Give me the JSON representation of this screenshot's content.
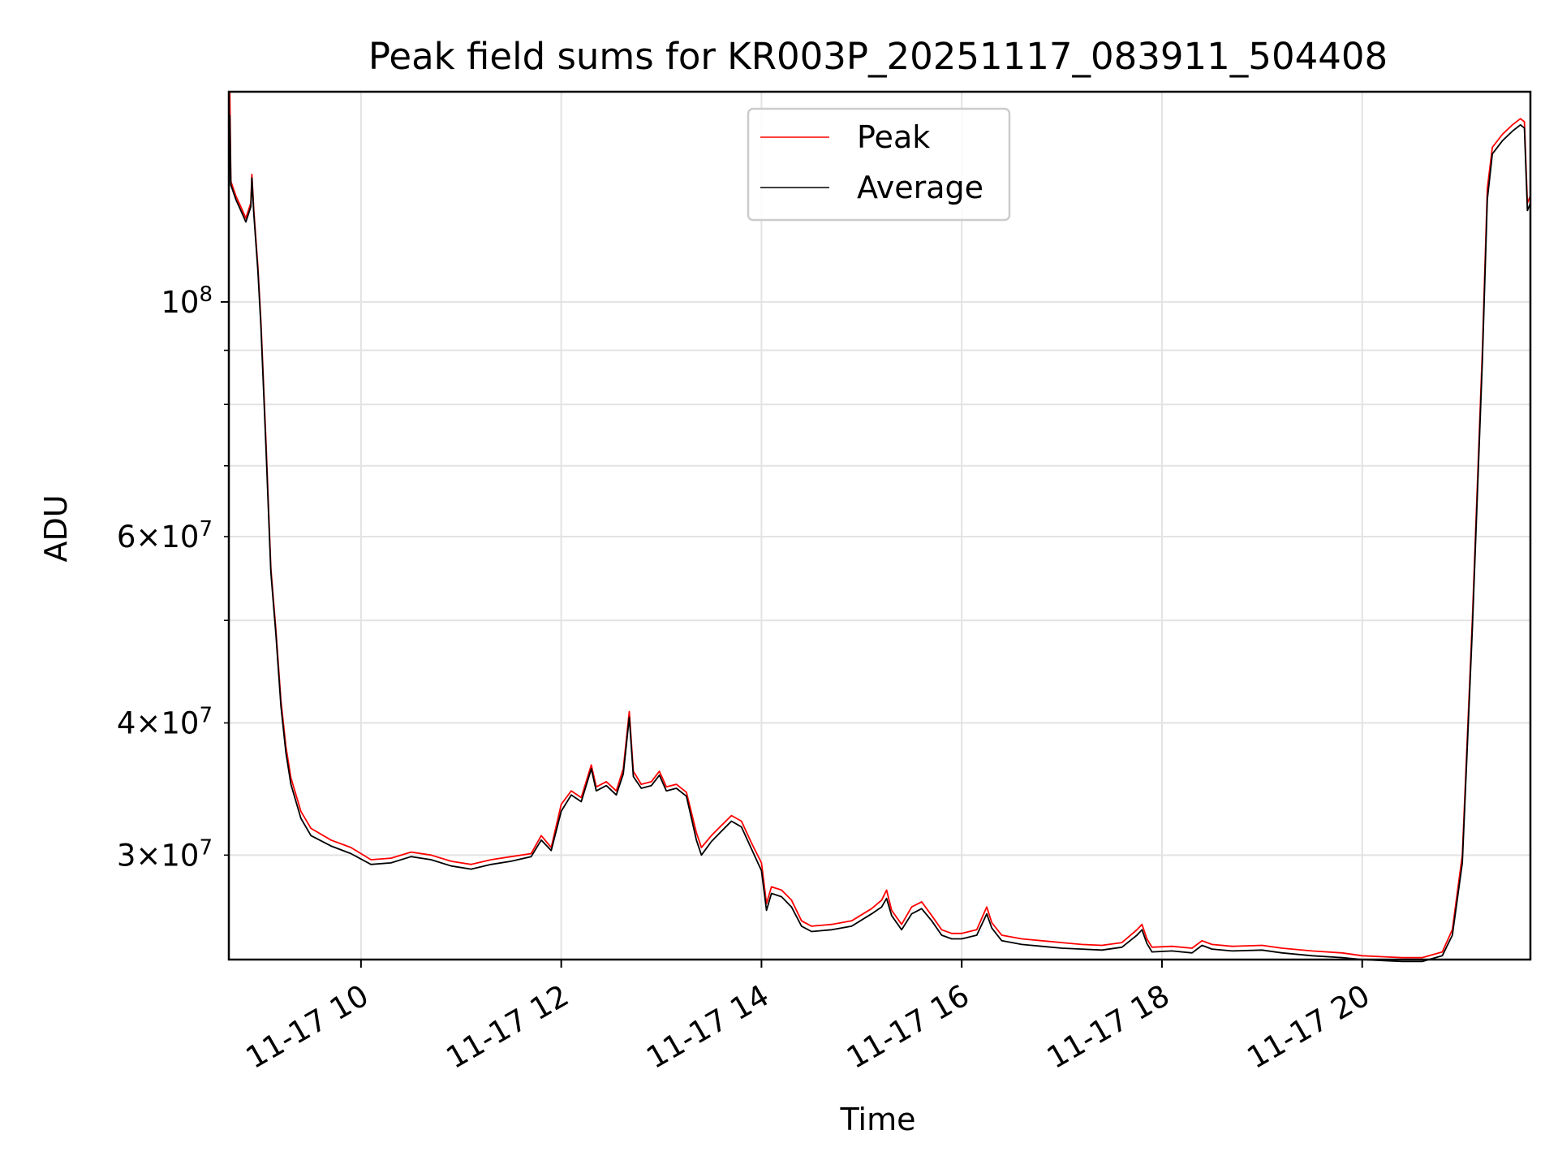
{
  "chart_data": {
    "type": "line",
    "title": "Peak field sums for KR003P_20251117_083911_504408",
    "xlabel": "Time",
    "ylabel": "ADU",
    "x_unit": "hours on 2025-11-17",
    "xlim": [
      8.68,
      21.68
    ],
    "ylim": [
      23900000,
      158000000
    ],
    "y_scale": "log",
    "grid": true,
    "legend": {
      "position": "top-center",
      "entries": [
        "Peak",
        "Average"
      ]
    },
    "x_ticks": [
      {
        "value": 10,
        "label": "11-17 10"
      },
      {
        "value": 12,
        "label": "11-17 12"
      },
      {
        "value": 14,
        "label": "11-17 14"
      },
      {
        "value": 16,
        "label": "11-17 16"
      },
      {
        "value": 18,
        "label": "11-17 18"
      },
      {
        "value": 20,
        "label": "11-17 20"
      }
    ],
    "y_ticks_major": [
      {
        "value": 100000000,
        "label": "10",
        "exp": "8"
      }
    ],
    "y_ticks_minor": [
      {
        "value": 30000000,
        "mant": "3",
        "exp": "7"
      },
      {
        "value": 40000000,
        "mant": "4",
        "exp": "7"
      },
      {
        "value": 50000000,
        "mant": "",
        "exp": ""
      },
      {
        "value": 60000000,
        "mant": "6",
        "exp": "7"
      },
      {
        "value": 70000000,
        "mant": "",
        "exp": ""
      },
      {
        "value": 80000000,
        "mant": "",
        "exp": ""
      },
      {
        "value": 90000000,
        "mant": "",
        "exp": ""
      }
    ],
    "minor_tick_times_sign": "×",
    "series": [
      {
        "name": "Peak",
        "color": "#ff0000",
        "points": [
          [
            8.68,
            128000000
          ],
          [
            8.69,
            158000000
          ],
          [
            8.7,
            130000000
          ],
          [
            8.75,
            126000000
          ],
          [
            8.8,
            123000000
          ],
          [
            8.85,
            120000000
          ],
          [
            8.9,
            124000000
          ],
          [
            8.91,
            132000000
          ],
          [
            8.93,
            122000000
          ],
          [
            8.97,
            108000000
          ],
          [
            9.0,
            96000000
          ],
          [
            9.05,
            74000000
          ],
          [
            9.1,
            56000000
          ],
          [
            9.15,
            49000000
          ],
          [
            9.2,
            42000000
          ],
          [
            9.25,
            38000000
          ],
          [
            9.3,
            35500000
          ],
          [
            9.4,
            33000000
          ],
          [
            9.5,
            31800000
          ],
          [
            9.7,
            31000000
          ],
          [
            9.9,
            30500000
          ],
          [
            10.1,
            29700000
          ],
          [
            10.3,
            29800000
          ],
          [
            10.5,
            30200000
          ],
          [
            10.7,
            30000000
          ],
          [
            10.9,
            29600000
          ],
          [
            11.1,
            29400000
          ],
          [
            11.3,
            29700000
          ],
          [
            11.5,
            29900000
          ],
          [
            11.7,
            30100000
          ],
          [
            11.8,
            31300000
          ],
          [
            11.9,
            30500000
          ],
          [
            12.0,
            33500000
          ],
          [
            12.1,
            34500000
          ],
          [
            12.2,
            34000000
          ],
          [
            12.3,
            36500000
          ],
          [
            12.35,
            34800000
          ],
          [
            12.45,
            35200000
          ],
          [
            12.55,
            34500000
          ],
          [
            12.62,
            36200000
          ],
          [
            12.68,
            41000000
          ],
          [
            12.72,
            36000000
          ],
          [
            12.8,
            35000000
          ],
          [
            12.9,
            35200000
          ],
          [
            12.98,
            36000000
          ],
          [
            13.05,
            34800000
          ],
          [
            13.15,
            35000000
          ],
          [
            13.25,
            34400000
          ],
          [
            13.35,
            31500000
          ],
          [
            13.4,
            30500000
          ],
          [
            13.5,
            31300000
          ],
          [
            13.6,
            32000000
          ],
          [
            13.7,
            32700000
          ],
          [
            13.8,
            32300000
          ],
          [
            13.9,
            30800000
          ],
          [
            14.0,
            29500000
          ],
          [
            14.05,
            27000000
          ],
          [
            14.1,
            28000000
          ],
          [
            14.2,
            27800000
          ],
          [
            14.3,
            27200000
          ],
          [
            14.4,
            26000000
          ],
          [
            14.5,
            25700000
          ],
          [
            14.7,
            25800000
          ],
          [
            14.9,
            26000000
          ],
          [
            15.1,
            26700000
          ],
          [
            15.2,
            27200000
          ],
          [
            15.25,
            27800000
          ],
          [
            15.3,
            26600000
          ],
          [
            15.4,
            25800000
          ],
          [
            15.5,
            26800000
          ],
          [
            15.6,
            27100000
          ],
          [
            15.7,
            26300000
          ],
          [
            15.8,
            25500000
          ],
          [
            15.9,
            25300000
          ],
          [
            16.0,
            25300000
          ],
          [
            16.15,
            25500000
          ],
          [
            16.25,
            26800000
          ],
          [
            16.3,
            25900000
          ],
          [
            16.4,
            25200000
          ],
          [
            16.6,
            25000000
          ],
          [
            16.8,
            24900000
          ],
          [
            17.0,
            24800000
          ],
          [
            17.2,
            24700000
          ],
          [
            17.4,
            24650000
          ],
          [
            17.6,
            24800000
          ],
          [
            17.75,
            25500000
          ],
          [
            17.8,
            25800000
          ],
          [
            17.85,
            25000000
          ],
          [
            17.9,
            24550000
          ],
          [
            18.1,
            24600000
          ],
          [
            18.3,
            24500000
          ],
          [
            18.4,
            24900000
          ],
          [
            18.5,
            24700000
          ],
          [
            18.7,
            24600000
          ],
          [
            19.0,
            24650000
          ],
          [
            19.2,
            24500000
          ],
          [
            19.5,
            24350000
          ],
          [
            19.8,
            24250000
          ],
          [
            20.0,
            24100000
          ],
          [
            20.2,
            24050000
          ],
          [
            20.4,
            24000000
          ],
          [
            20.6,
            24000000
          ],
          [
            20.8,
            24300000
          ],
          [
            20.9,
            25500000
          ],
          [
            21.0,
            30000000
          ],
          [
            21.1,
            50000000
          ],
          [
            21.2,
            90000000
          ],
          [
            21.25,
            128000000
          ],
          [
            21.3,
            140000000
          ],
          [
            21.4,
            144000000
          ],
          [
            21.5,
            147000000
          ],
          [
            21.58,
            149000000
          ],
          [
            21.62,
            148000000
          ],
          [
            21.65,
            124000000
          ],
          [
            21.68,
            126000000
          ]
        ]
      },
      {
        "name": "Average",
        "color": "#000000",
        "points": [
          [
            8.68,
            126000000
          ],
          [
            8.69,
            150000000
          ],
          [
            8.7,
            129000000
          ],
          [
            8.75,
            125000000
          ],
          [
            8.8,
            122000000
          ],
          [
            8.85,
            119000000
          ],
          [
            8.9,
            123000000
          ],
          [
            8.91,
            131000000
          ],
          [
            8.93,
            121000000
          ],
          [
            8.97,
            107000000
          ],
          [
            9.0,
            95000000
          ],
          [
            9.05,
            73000000
          ],
          [
            9.1,
            55500000
          ],
          [
            9.15,
            48500000
          ],
          [
            9.2,
            41500000
          ],
          [
            9.25,
            37500000
          ],
          [
            9.3,
            35000000
          ],
          [
            9.4,
            32500000
          ],
          [
            9.5,
            31300000
          ],
          [
            9.7,
            30600000
          ],
          [
            9.9,
            30100000
          ],
          [
            10.1,
            29400000
          ],
          [
            10.3,
            29500000
          ],
          [
            10.5,
            29900000
          ],
          [
            10.7,
            29700000
          ],
          [
            10.9,
            29300000
          ],
          [
            11.1,
            29100000
          ],
          [
            11.3,
            29400000
          ],
          [
            11.5,
            29600000
          ],
          [
            11.7,
            29900000
          ],
          [
            11.8,
            31000000
          ],
          [
            11.9,
            30300000
          ],
          [
            12.0,
            33000000
          ],
          [
            12.1,
            34200000
          ],
          [
            12.2,
            33700000
          ],
          [
            12.3,
            36200000
          ],
          [
            12.35,
            34500000
          ],
          [
            12.45,
            34900000
          ],
          [
            12.55,
            34200000
          ],
          [
            12.62,
            35800000
          ],
          [
            12.68,
            40500000
          ],
          [
            12.72,
            35600000
          ],
          [
            12.8,
            34700000
          ],
          [
            12.9,
            34900000
          ],
          [
            12.98,
            35700000
          ],
          [
            13.05,
            34500000
          ],
          [
            13.15,
            34700000
          ],
          [
            13.25,
            34100000
          ],
          [
            13.35,
            31000000
          ],
          [
            13.4,
            30000000
          ],
          [
            13.5,
            30900000
          ],
          [
            13.6,
            31600000
          ],
          [
            13.7,
            32300000
          ],
          [
            13.8,
            31900000
          ],
          [
            13.9,
            30400000
          ],
          [
            14.0,
            29000000
          ],
          [
            14.05,
            26600000
          ],
          [
            14.1,
            27600000
          ],
          [
            14.2,
            27400000
          ],
          [
            14.3,
            26800000
          ],
          [
            14.4,
            25700000
          ],
          [
            14.5,
            25400000
          ],
          [
            14.7,
            25500000
          ],
          [
            14.9,
            25700000
          ],
          [
            15.1,
            26400000
          ],
          [
            15.2,
            26800000
          ],
          [
            15.25,
            27300000
          ],
          [
            15.3,
            26300000
          ],
          [
            15.4,
            25500000
          ],
          [
            15.5,
            26400000
          ],
          [
            15.6,
            26700000
          ],
          [
            15.7,
            26000000
          ],
          [
            15.8,
            25200000
          ],
          [
            15.9,
            25000000
          ],
          [
            16.0,
            25000000
          ],
          [
            16.15,
            25200000
          ],
          [
            16.25,
            26400000
          ],
          [
            16.3,
            25600000
          ],
          [
            16.4,
            24900000
          ],
          [
            16.6,
            24700000
          ],
          [
            16.8,
            24600000
          ],
          [
            17.0,
            24500000
          ],
          [
            17.2,
            24450000
          ],
          [
            17.4,
            24400000
          ],
          [
            17.6,
            24550000
          ],
          [
            17.75,
            25200000
          ],
          [
            17.8,
            25500000
          ],
          [
            17.85,
            24750000
          ],
          [
            17.9,
            24300000
          ],
          [
            18.1,
            24350000
          ],
          [
            18.3,
            24250000
          ],
          [
            18.4,
            24650000
          ],
          [
            18.5,
            24450000
          ],
          [
            18.7,
            24350000
          ],
          [
            19.0,
            24400000
          ],
          [
            19.2,
            24250000
          ],
          [
            19.5,
            24100000
          ],
          [
            19.8,
            24000000
          ],
          [
            20.0,
            23900000
          ],
          [
            20.2,
            23850000
          ],
          [
            20.4,
            23800000
          ],
          [
            20.6,
            23800000
          ],
          [
            20.8,
            24100000
          ],
          [
            20.9,
            25200000
          ],
          [
            21.0,
            29500000
          ],
          [
            21.1,
            49000000
          ],
          [
            21.2,
            88000000
          ],
          [
            21.25,
            125000000
          ],
          [
            21.3,
            138000000
          ],
          [
            21.4,
            142000000
          ],
          [
            21.5,
            145000000
          ],
          [
            21.58,
            147000000
          ],
          [
            21.62,
            146000000
          ],
          [
            21.65,
            122000000
          ],
          [
            21.68,
            124000000
          ]
        ]
      }
    ]
  }
}
